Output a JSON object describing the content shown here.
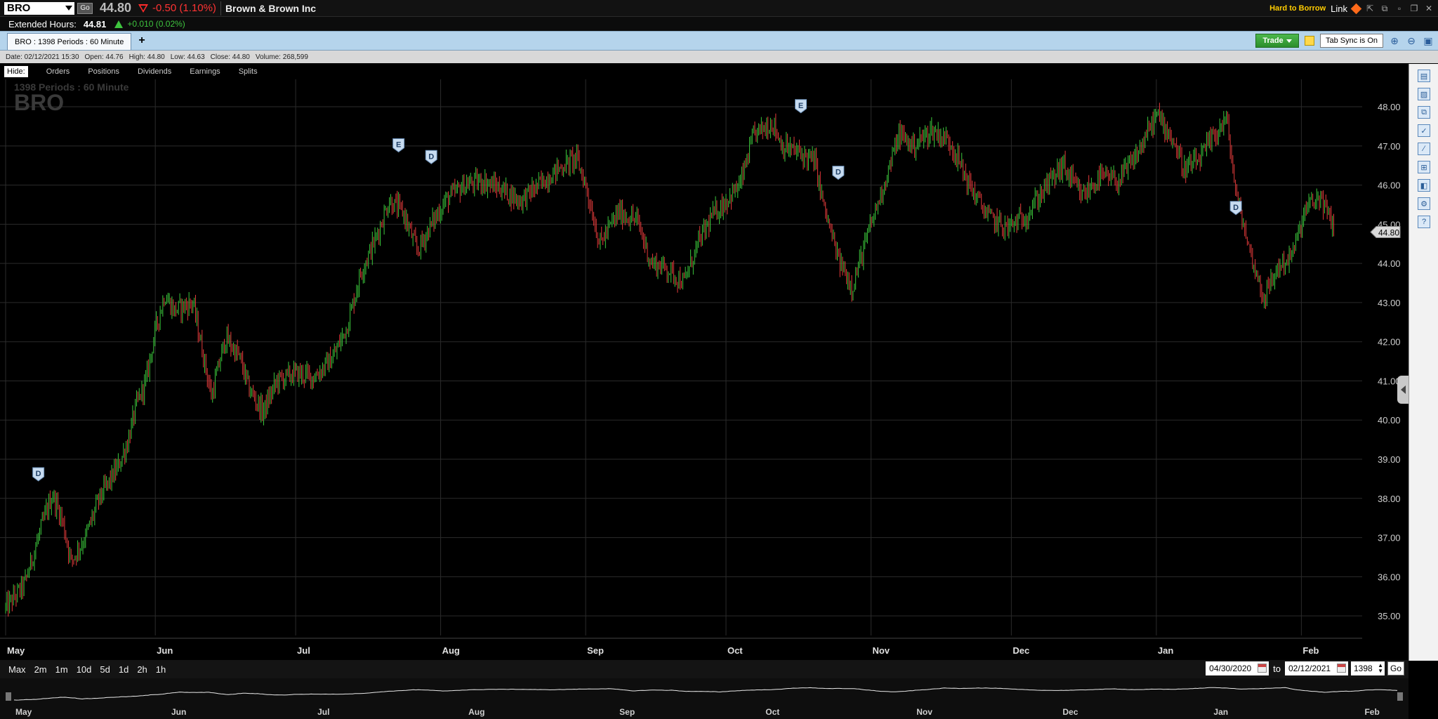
{
  "header": {
    "symbol": "BRO",
    "go_label": "Go",
    "last_price": "44.80",
    "change": "-0.50 (1.10%)",
    "company": "Brown & Brown Inc",
    "hard_to_borrow": "Hard to Borrow",
    "link_label": "Link"
  },
  "extended": {
    "label": "Extended Hours:",
    "price": "44.81",
    "change": "+0.010 (0.02%)"
  },
  "tabs": {
    "active_tab": "BRO : 1398  Periods : 60 Minute",
    "add": "+",
    "trade_label": "Trade",
    "tab_sync": "Tab Sync is On"
  },
  "info": {
    "date": "Date: 02/12/2021 15:30",
    "open": "Open: 44.76",
    "high": "High: 44.80",
    "low": "Low: 44.63",
    "close": "Close: 44.80",
    "volume": "Volume: 268,599"
  },
  "hidebar": {
    "hide": "Hide:",
    "items": [
      "Orders",
      "Positions",
      "Dividends",
      "Earnings",
      "Splits"
    ]
  },
  "chart_data": {
    "type": "candlestick",
    "watermark_small": "1398  Periods : 60 Minute",
    "watermark_symbol": "BRO",
    "y_ticks": [
      "48.00",
      "47.00",
      "46.00",
      "45.00",
      "44.00",
      "43.00",
      "42.00",
      "41.00",
      "40.00",
      "39.00",
      "38.00",
      "37.00",
      "36.00",
      "35.00"
    ],
    "ylim": [
      34.5,
      48.7
    ],
    "last_price_tag": "44.80",
    "x_labels": [
      "May",
      "Jun",
      "Jul",
      "Aug",
      "Sep",
      "Oct",
      "Nov",
      "Dec",
      "Jan",
      "Feb"
    ],
    "x_label_days": [
      0,
      32,
      62,
      93,
      124,
      154,
      185,
      215,
      246,
      277
    ],
    "x_range_days": [
      0,
      290
    ],
    "price_path": [
      [
        0,
        35.2
      ],
      [
        4,
        35.8
      ],
      [
        8,
        37.4
      ],
      [
        10,
        38.1
      ],
      [
        12,
        37.5
      ],
      [
        14,
        36.4
      ],
      [
        17,
        37.0
      ],
      [
        20,
        38.0
      ],
      [
        24,
        38.8
      ],
      [
        26,
        39.4
      ],
      [
        28,
        40.4
      ],
      [
        30,
        41.0
      ],
      [
        32,
        42.3
      ],
      [
        34,
        43.2
      ],
      [
        36,
        42.8
      ],
      [
        40,
        43.0
      ],
      [
        42,
        41.8
      ],
      [
        44,
        40.6
      ],
      [
        47,
        42.1
      ],
      [
        50,
        41.6
      ],
      [
        52,
        40.8
      ],
      [
        55,
        40.2
      ],
      [
        58,
        41.0
      ],
      [
        62,
        41.2
      ],
      [
        66,
        41.1
      ],
      [
        70,
        41.6
      ],
      [
        73,
        42.4
      ],
      [
        76,
        43.8
      ],
      [
        79,
        44.6
      ],
      [
        82,
        45.6
      ],
      [
        85,
        45.3
      ],
      [
        88,
        44.3
      ],
      [
        91,
        45.0
      ],
      [
        94,
        45.6
      ],
      [
        98,
        46.0
      ],
      [
        102,
        46.1
      ],
      [
        106,
        45.9
      ],
      [
        110,
        45.6
      ],
      [
        114,
        46.0
      ],
      [
        118,
        46.4
      ],
      [
        122,
        46.7
      ],
      [
        124,
        46.0
      ],
      [
        127,
        44.5
      ],
      [
        131,
        45.3
      ],
      [
        135,
        45.1
      ],
      [
        138,
        44.0
      ],
      [
        141,
        43.9
      ],
      [
        145,
        43.5
      ],
      [
        148,
        44.5
      ],
      [
        151,
        45.2
      ],
      [
        154,
        45.6
      ],
      [
        157,
        46.0
      ],
      [
        160,
        47.3
      ],
      [
        164,
        47.6
      ],
      [
        166,
        47.0
      ],
      [
        170,
        46.8
      ],
      [
        173,
        46.6
      ],
      [
        175,
        45.4
      ],
      [
        178,
        44.1
      ],
      [
        181,
        43.4
      ],
      [
        183,
        44.2
      ],
      [
        185,
        45.0
      ],
      [
        188,
        46.1
      ],
      [
        191,
        47.3
      ],
      [
        194,
        47.0
      ],
      [
        198,
        47.4
      ],
      [
        202,
        47.1
      ],
      [
        206,
        46.0
      ],
      [
        210,
        45.2
      ],
      [
        214,
        44.9
      ],
      [
        218,
        45.2
      ],
      [
        222,
        45.9
      ],
      [
        226,
        46.5
      ],
      [
        230,
        45.7
      ],
      [
        234,
        46.2
      ],
      [
        238,
        46.1
      ],
      [
        242,
        46.8
      ],
      [
        246,
        47.8
      ],
      [
        249,
        47.3
      ],
      [
        252,
        46.4
      ],
      [
        255,
        46.6
      ],
      [
        258,
        47.2
      ],
      [
        261,
        47.7
      ],
      [
        263,
        45.8
      ],
      [
        266,
        44.3
      ],
      [
        269,
        43.1
      ],
      [
        272,
        43.9
      ],
      [
        275,
        44.2
      ],
      [
        278,
        45.4
      ],
      [
        281,
        45.7
      ],
      [
        284,
        44.9
      ]
    ]
  },
  "markers": [
    {
      "label": "D",
      "day": 7,
      "price": 38.3
    },
    {
      "label": "E",
      "day": 84,
      "price": 46.7
    },
    {
      "label": "D",
      "day": 91,
      "price": 46.4
    },
    {
      "label": "E",
      "day": 170,
      "price": 47.7
    },
    {
      "label": "D",
      "day": 178,
      "price": 46.0
    },
    {
      "label": "D",
      "day": 263,
      "price": 45.1
    }
  ],
  "range": {
    "buttons": [
      "Max",
      "2m",
      "1m",
      "10d",
      "5d",
      "1d",
      "2h",
      "1h"
    ],
    "from": "04/30/2020",
    "to_label": "to",
    "to": "02/12/2021",
    "periods": "1398",
    "go": "Go"
  },
  "navigator": {
    "labels": [
      "May",
      "Jun",
      "Jul",
      "Aug",
      "Sep",
      "Oct",
      "Nov",
      "Dec",
      "Jan",
      "Feb"
    ]
  }
}
